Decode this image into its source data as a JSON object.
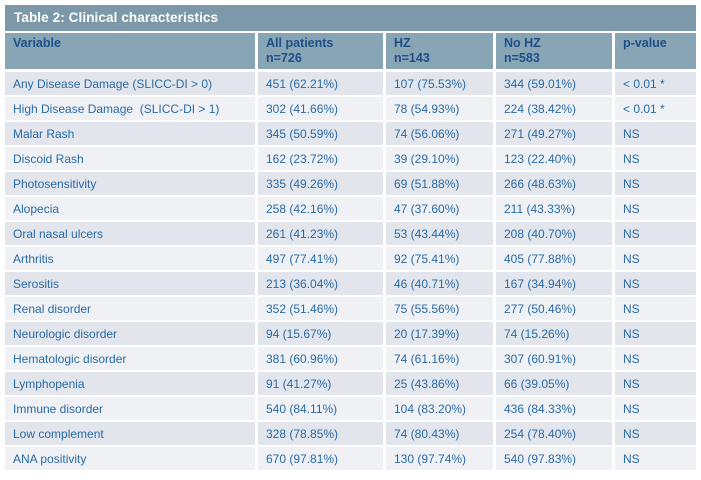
{
  "title": "Table 2: Clinical characteristics",
  "colors": {
    "title_bar_bg": "#7d98a9",
    "header_bg": "#88a5b6",
    "header_text": "#1c5086",
    "data_text": "#2a6ba6",
    "row_odd_bg": "#e2e5eb",
    "row_even_bg": "#eff1f5",
    "title_text": "#ffffff",
    "page_bg": "#ffffff"
  },
  "table": {
    "columns": [
      {
        "label": "Variable",
        "sub": ""
      },
      {
        "label": "All patients",
        "sub": "n=726"
      },
      {
        "label": "HZ",
        "sub": "n=143"
      },
      {
        "label": "No HZ",
        "sub": "n=583"
      },
      {
        "label": "p-value",
        "sub": ""
      }
    ],
    "rows": [
      {
        "variable": "Any Disease Damage (SLICC-DI > 0)",
        "all": "451 (62.21%)",
        "hz": "107 (75.53%)",
        "no_hz": "344 (59.01%)",
        "p": "< 0.01 *"
      },
      {
        "variable": "High Disease Damage  (SLICC-DI > 1)",
        "all": "302 (41.66%)",
        "hz": "78 (54.93%)",
        "no_hz": "224 (38.42%)",
        "p": "< 0.01 *"
      },
      {
        "variable": "Malar Rash",
        "all": "345 (50.59%)",
        "hz": "74 (56.06%)",
        "no_hz": "271 (49.27%)",
        "p": "NS"
      },
      {
        "variable": "Discoid Rash",
        "all": "162 (23.72%)",
        "hz": "39 (29.10%)",
        "no_hz": "123 (22.40%)",
        "p": "NS"
      },
      {
        "variable": "Photosensitivity",
        "all": "335 (49.26%)",
        "hz": "69 (51.88%)",
        "no_hz": "266 (48.63%)",
        "p": "NS"
      },
      {
        "variable": "Alopecia",
        "all": "258 (42.16%)",
        "hz": "47 (37.60%)",
        "no_hz": "211 (43.33%)",
        "p": "NS"
      },
      {
        "variable": "Oral nasal ulcers",
        "all": "261 (41.23%)",
        "hz": "53 (43.44%)",
        "no_hz": "208 (40.70%)",
        "p": "NS"
      },
      {
        "variable": "Arthritis",
        "all": "497 (77.41%)",
        "hz": "92 (75.41%)",
        "no_hz": "405 (77.88%)",
        "p": "NS"
      },
      {
        "variable": "Serositis",
        "all": "213 (36.04%)",
        "hz": "46 (40.71%)",
        "no_hz": "167 (34.94%)",
        "p": "NS"
      },
      {
        "variable": "Renal disorder",
        "all": "352 (51.46%)",
        "hz": "75 (55.56%)",
        "no_hz": "277 (50.46%)",
        "p": "NS"
      },
      {
        "variable": "Neurologic disorder",
        "all": "94 (15.67%)",
        "hz": "20 (17.39%)",
        "no_hz": "74 (15.26%)",
        "p": "NS"
      },
      {
        "variable": "Hematologic disorder",
        "all": "381 (60.96%)",
        "hz": "74 (61.16%)",
        "no_hz": "307 (60.91%)",
        "p": "NS"
      },
      {
        "variable": "Lymphopenia",
        "all": "91 (41.27%)",
        "hz": "25 (43.86%)",
        "no_hz": "66 (39.05%)",
        "p": "NS"
      },
      {
        "variable": "Immune disorder",
        "all": "540 (84.11%)",
        "hz": "104 (83.20%)",
        "no_hz": "436 (84.33%)",
        "p": "NS"
      },
      {
        "variable": "Low complement",
        "all": "328 (78.85%)",
        "hz": "74 (80.43%)",
        "no_hz": "254 (78.40%)",
        "p": "NS"
      },
      {
        "variable": "ANA positivity",
        "all": "670 (97.81%)",
        "hz": "130 (97.74%)",
        "no_hz": "540 (97.83%)",
        "p": "NS"
      }
    ]
  }
}
